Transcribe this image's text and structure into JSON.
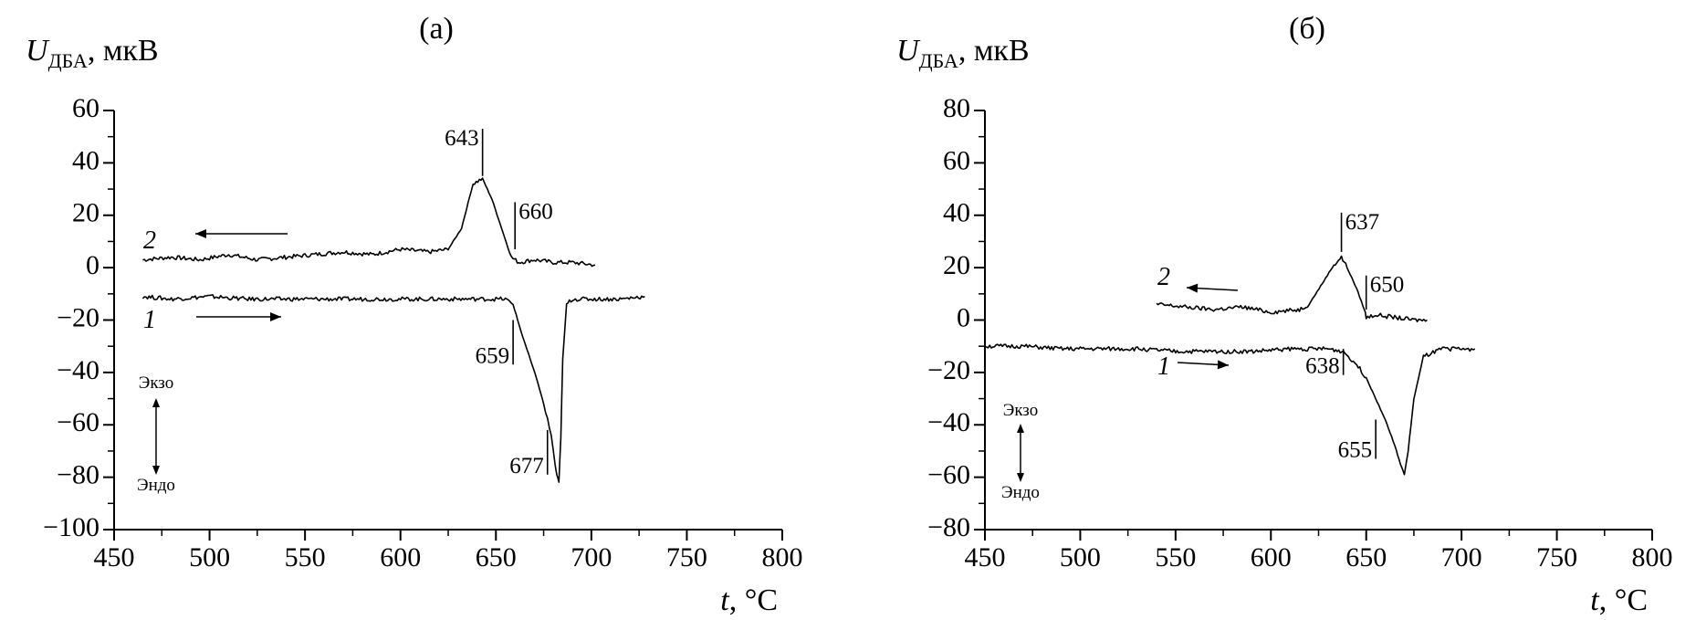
{
  "chart_data": [
    {
      "type": "line",
      "title": "(а)",
      "ylabel": {
        "symbol": "U",
        "subscript": "ДБА",
        "unit": ", мкВ"
      },
      "xlabel": {
        "symbol": "t",
        "unit": ", °C"
      },
      "xlim": [
        450,
        800
      ],
      "ylim": [
        -100,
        60
      ],
      "xticks": [
        450,
        500,
        550,
        600,
        650,
        700,
        750,
        800
      ],
      "yticks": [
        -100,
        -80,
        -60,
        -40,
        -20,
        0,
        20,
        40,
        60
      ],
      "grid": false,
      "series": [
        {
          "name": "2",
          "x": [
            465,
            480,
            495,
            510,
            525,
            540,
            555,
            570,
            585,
            600,
            615,
            625,
            632,
            638,
            643,
            648,
            653,
            658,
            662,
            670,
            680,
            690,
            702
          ],
          "y": [
            3,
            4,
            3,
            5,
            3,
            4,
            5,
            6,
            5,
            7,
            6,
            7,
            15,
            32,
            34,
            26,
            15,
            4,
            2,
            3,
            2,
            2,
            1
          ]
        },
        {
          "name": "1",
          "x": [
            465,
            480,
            500,
            520,
            540,
            560,
            580,
            600,
            620,
            640,
            655,
            659,
            663,
            668,
            672,
            675,
            677,
            679,
            681,
            682,
            683,
            684,
            685,
            687,
            690,
            700,
            715,
            728
          ],
          "y": [
            -11,
            -12,
            -11,
            -12,
            -12,
            -12,
            -12,
            -12,
            -12,
            -12,
            -12,
            -14,
            -24,
            -35,
            -44,
            -52,
            -58,
            -64,
            -75,
            -80,
            -82,
            -65,
            -35,
            -14,
            -12,
            -12,
            -12,
            -11
          ]
        }
      ],
      "annotations": [
        {
          "text": "643",
          "x": 643,
          "y_top": 53,
          "y_bottom": 35
        },
        {
          "text": "660",
          "x": 660,
          "y_top": 25,
          "y_bottom": 7
        },
        {
          "text": "659",
          "x": 659,
          "y_top": -20,
          "y_bottom": -37
        },
        {
          "text": "677",
          "x": 677,
          "y_top": -62,
          "y_bottom": -79
        }
      ],
      "curve_labels": [
        "2",
        "1"
      ],
      "legend": {
        "exo": "Экзо",
        "endo": "Эндо"
      }
    },
    {
      "type": "line",
      "title": "(б)",
      "ylabel": {
        "symbol": "U",
        "subscript": "ДБА",
        "unit": ", мкВ"
      },
      "xlabel": {
        "symbol": "t",
        "unit": ", °C"
      },
      "xlim": [
        450,
        800
      ],
      "ylim": [
        -80,
        80
      ],
      "xticks": [
        450,
        500,
        550,
        600,
        650,
        700,
        750,
        800
      ],
      "yticks": [
        -80,
        -60,
        -40,
        -20,
        0,
        20,
        40,
        60,
        80
      ],
      "grid": false,
      "series": [
        {
          "name": "2",
          "x": [
            540,
            555,
            570,
            585,
            600,
            615,
            620,
            627,
            633,
            637,
            640,
            645,
            649,
            650,
            655,
            665,
            675,
            682
          ],
          "y": [
            6,
            5,
            4,
            5,
            3,
            4,
            6,
            14,
            21,
            24,
            20,
            12,
            4,
            1,
            2,
            1,
            0,
            0
          ],
          "dashed": false
        },
        {
          "name": "1",
          "x": [
            450,
            470,
            490,
            510,
            530,
            550,
            570,
            590,
            610,
            630,
            638,
            645,
            650,
            655,
            660,
            665,
            668,
            670,
            672,
            675,
            680,
            690,
            700,
            707
          ],
          "y": [
            -10,
            -10,
            -11,
            -11,
            -11,
            -12,
            -12,
            -12,
            -11,
            -11,
            -12,
            -17,
            -22,
            -30,
            -38,
            -48,
            -55,
            -59,
            -50,
            -30,
            -14,
            -11,
            -11,
            -11
          ]
        }
      ],
      "annotations": [
        {
          "text": "637",
          "x": 637,
          "y_top": 41,
          "y_bottom": 26
        },
        {
          "text": "650",
          "x": 650,
          "y_top": 17,
          "y_bottom": 4
        },
        {
          "text": "638",
          "x": 638,
          "y_top": -11,
          "y_bottom": -21
        },
        {
          "text": "655",
          "x": 655,
          "y_top": -38,
          "y_bottom": -53
        }
      ],
      "curve_labels": [
        "2",
        "1"
      ],
      "legend": {
        "exo": "Экзо",
        "endo": "Эндо"
      }
    }
  ]
}
